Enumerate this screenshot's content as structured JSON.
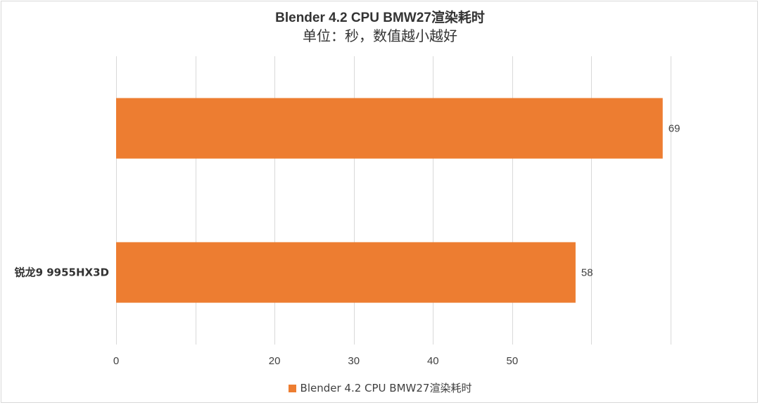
{
  "chart_data": {
    "type": "bar",
    "orientation": "horizontal",
    "title": "Blender 4.2 CPU BMW27渲染耗时",
    "subtitle": "单位：秒，数值越小越好",
    "categories": [
      "",
      "锐龙9 9955HX3D"
    ],
    "series": [
      {
        "name": "Blender 4.2 CPU BMW27渲染耗时",
        "values": [
          69,
          58
        ],
        "color": "#ed7d31"
      }
    ],
    "data_labels": [
      "69",
      "58"
    ],
    "xlim": [
      0,
      70
    ],
    "x_ticks": [
      0,
      10,
      20,
      30,
      40,
      50,
      60,
      70
    ],
    "x_tick_labels": [
      "0",
      "",
      "20",
      "30",
      "40",
      "50",
      "",
      ""
    ],
    "grid": true,
    "legend_position": "bottom",
    "colors": {
      "bar": "#ed7d31",
      "grid": "#d9d9d9",
      "text": "#404040"
    }
  }
}
